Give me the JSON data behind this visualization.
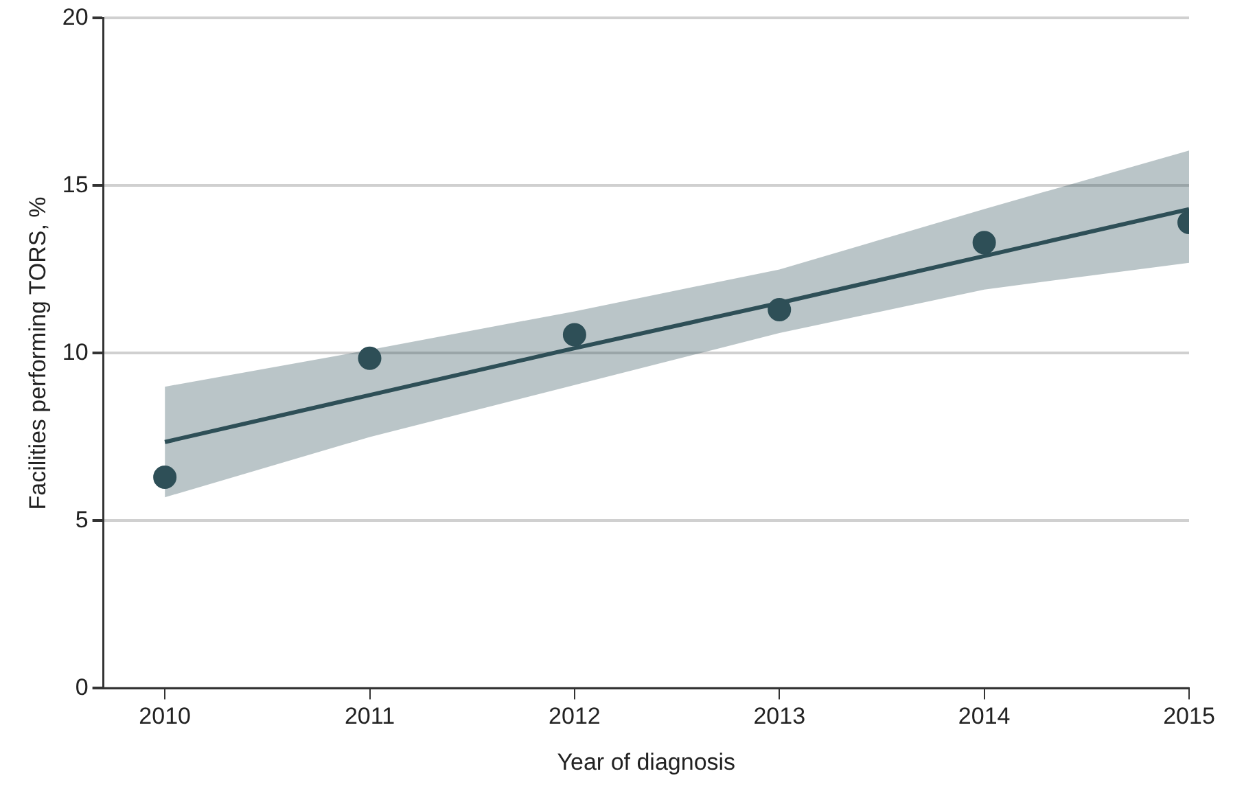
{
  "chart_data": {
    "type": "scatter",
    "xlabel": "Year of diagnosis",
    "ylabel": "Facilities performing TORS, %",
    "x": [
      2010,
      2011,
      2012,
      2013,
      2014,
      2015
    ],
    "series": [
      {
        "type": "scatter",
        "marker": "circle",
        "color": "#2e4f57",
        "values": [
          6.3,
          9.85,
          10.55,
          11.3,
          13.3,
          13.9
        ]
      },
      {
        "type": "line",
        "marker": "none",
        "color": "#2e4f57",
        "x": [
          2010,
          2011,
          2012,
          2013,
          2014,
          2015
        ],
        "values": [
          7.35,
          8.75,
          10.15,
          11.5,
          12.9,
          14.3
        ],
        "lower": [
          5.7,
          7.5,
          9.05,
          10.6,
          11.9,
          12.7
        ],
        "upper": [
          9.0,
          10.1,
          11.25,
          12.5,
          14.3,
          16.05
        ]
      }
    ],
    "xlim": [
      2009.7,
      2015
    ],
    "xticks": [
      2010,
      2011,
      2012,
      2013,
      2014,
      2015
    ],
    "ylim": [
      0,
      20
    ],
    "yticks": [
      0,
      5,
      10,
      15,
      20
    ],
    "grid": "y",
    "legend": false,
    "line_style": "solid"
  }
}
